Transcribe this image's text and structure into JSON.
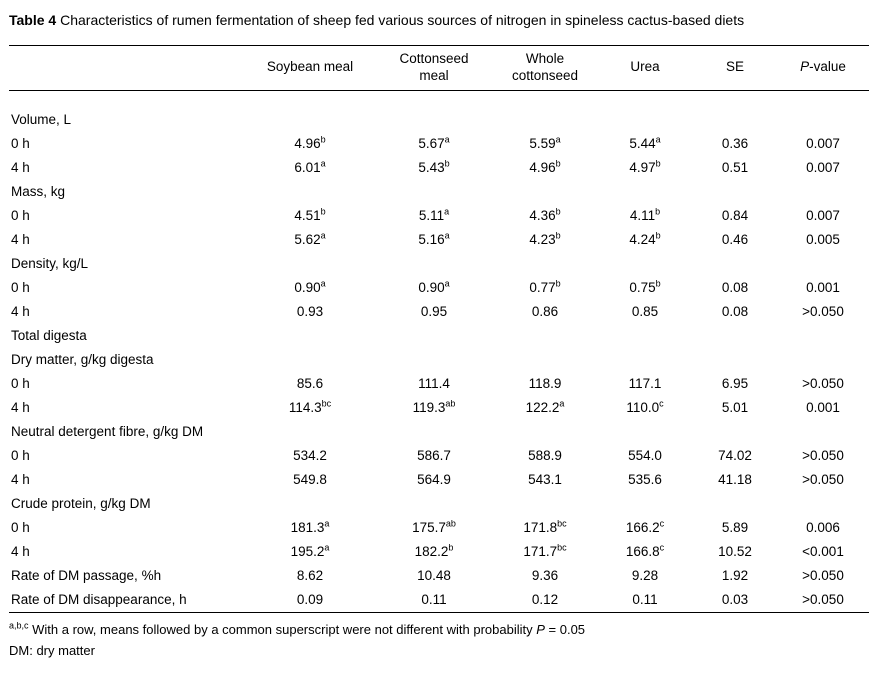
{
  "caption": {
    "label": "Table 4",
    "text": " Characteristics of rumen fermentation of sheep fed various sources of nitrogen in spineless cactus-based diets"
  },
  "table": {
    "columns": [
      {
        "name": "row-label-column",
        "lines": [
          ""
        ]
      },
      {
        "name": "column-soybean-meal",
        "lines": [
          "Soybean meal"
        ]
      },
      {
        "name": "column-cottonseed-meal",
        "lines": [
          "Cottonseed",
          "meal"
        ]
      },
      {
        "name": "column-whole-cottonseed",
        "lines": [
          "Whole",
          "cottonseed"
        ]
      },
      {
        "name": "column-urea",
        "lines": [
          "Urea"
        ]
      },
      {
        "name": "column-se",
        "lines": [
          "SE"
        ]
      },
      {
        "name": "column-p-value",
        "italic_prefix": "P",
        "lines": [
          "-value"
        ]
      }
    ],
    "rows": [
      {
        "type": "section",
        "label": "Volume, L"
      },
      {
        "type": "data",
        "label": "0 h",
        "cells": [
          {
            "v": "4.96",
            "sup": "b"
          },
          {
            "v": "5.67",
            "sup": "a"
          },
          {
            "v": "5.59",
            "sup": "a"
          },
          {
            "v": "5.44",
            "sup": "a"
          },
          {
            "v": "0.36"
          },
          {
            "v": "0.007"
          }
        ]
      },
      {
        "type": "data",
        "label": "4 h",
        "cells": [
          {
            "v": "6.01",
            "sup": "a"
          },
          {
            "v": "5.43",
            "sup": "b"
          },
          {
            "v": "4.96",
            "sup": "b"
          },
          {
            "v": "4.97",
            "sup": "b"
          },
          {
            "v": "0.51"
          },
          {
            "v": "0.007"
          }
        ]
      },
      {
        "type": "section",
        "label": "Mass, kg"
      },
      {
        "type": "data",
        "label": "0 h",
        "cells": [
          {
            "v": "4.51",
            "sup": "b"
          },
          {
            "v": "5.11",
            "sup": "a"
          },
          {
            "v": "4.36",
            "sup": "b"
          },
          {
            "v": "4.11",
            "sup": "b"
          },
          {
            "v": "0.84"
          },
          {
            "v": "0.007"
          }
        ]
      },
      {
        "type": "data",
        "label": "4 h",
        "cells": [
          {
            "v": "5.62",
            "sup": "a"
          },
          {
            "v": "5.16",
            "sup": "a"
          },
          {
            "v": "4.23",
            "sup": "b"
          },
          {
            "v": "4.24",
            "sup": "b"
          },
          {
            "v": "0.46"
          },
          {
            "v": "0.005"
          }
        ]
      },
      {
        "type": "section",
        "label": "Density, kg/L"
      },
      {
        "type": "data",
        "label": "0 h",
        "cells": [
          {
            "v": "0.90",
            "sup": "a"
          },
          {
            "v": "0.90",
            "sup": "a"
          },
          {
            "v": "0.77",
            "sup": "b"
          },
          {
            "v": "0.75",
            "sup": "b"
          },
          {
            "v": "0.08"
          },
          {
            "v": "0.001"
          }
        ]
      },
      {
        "type": "data",
        "label": "4 h",
        "cells": [
          {
            "v": "0.93"
          },
          {
            "v": "0.95"
          },
          {
            "v": "0.86"
          },
          {
            "v": "0.85"
          },
          {
            "v": "0.08"
          },
          {
            "v": ">0.050"
          }
        ]
      },
      {
        "type": "section",
        "label": "Total digesta"
      },
      {
        "type": "section",
        "label": "Dry matter, g/kg digesta"
      },
      {
        "type": "data",
        "label": "0 h",
        "cells": [
          {
            "v": "85.6"
          },
          {
            "v": "111.4"
          },
          {
            "v": "118.9"
          },
          {
            "v": "117.1"
          },
          {
            "v": "6.95"
          },
          {
            "v": ">0.050"
          }
        ]
      },
      {
        "type": "data",
        "label": "4 h",
        "cells": [
          {
            "v": "114.3",
            "sup": "bc"
          },
          {
            "v": "119.3",
            "sup": "ab"
          },
          {
            "v": "122.2",
            "sup": "a"
          },
          {
            "v": "110.0",
            "sup": "c"
          },
          {
            "v": "5.01"
          },
          {
            "v": "0.001"
          }
        ]
      },
      {
        "type": "section",
        "label": "Neutral detergent fibre, g/kg DM"
      },
      {
        "type": "data",
        "label": "0 h",
        "cells": [
          {
            "v": "534.2"
          },
          {
            "v": "586.7"
          },
          {
            "v": "588.9"
          },
          {
            "v": "554.0"
          },
          {
            "v": "74.02"
          },
          {
            "v": ">0.050"
          }
        ]
      },
      {
        "type": "data",
        "label": "4 h",
        "cells": [
          {
            "v": "549.8"
          },
          {
            "v": "564.9"
          },
          {
            "v": "543.1"
          },
          {
            "v": "535.6"
          },
          {
            "v": "41.18"
          },
          {
            "v": ">0.050"
          }
        ]
      },
      {
        "type": "section",
        "label": "Crude protein, g/kg DM"
      },
      {
        "type": "data",
        "label": "0 h",
        "cells": [
          {
            "v": "181.3",
            "sup": "a"
          },
          {
            "v": "175.7",
            "sup": "ab"
          },
          {
            "v": "171.8",
            "sup": "bc"
          },
          {
            "v": "166.2",
            "sup": "c"
          },
          {
            "v": "5.89"
          },
          {
            "v": "0.006"
          }
        ]
      },
      {
        "type": "data",
        "label": "4 h",
        "cells": [
          {
            "v": "195.2",
            "sup": "a"
          },
          {
            "v": "182.2",
            "sup": "b"
          },
          {
            "v": "171.7",
            "sup": "bc"
          },
          {
            "v": "166.8",
            "sup": "c"
          },
          {
            "v": "10.52"
          },
          {
            "v": "<0.001"
          }
        ]
      },
      {
        "type": "data",
        "label": "Rate of DM passage, %h",
        "cells": [
          {
            "v": "8.62"
          },
          {
            "v": "10.48"
          },
          {
            "v": "9.36"
          },
          {
            "v": "9.28"
          },
          {
            "v": "1.92"
          },
          {
            "v": ">0.050"
          }
        ]
      },
      {
        "type": "data",
        "label": "Rate of DM disappearance, h",
        "cells": [
          {
            "v": "0.09"
          },
          {
            "v": "0.11"
          },
          {
            "v": "0.12"
          },
          {
            "v": "0.11"
          },
          {
            "v": "0.03"
          },
          {
            "v": ">0.050"
          }
        ]
      }
    ]
  },
  "footnotes": [
    {
      "sup": "a,b,c",
      "pre": " With a row, means followed by a common superscript were not different with probability ",
      "italic": "P",
      "post": " = 0.05"
    },
    {
      "text": "DM: dry matter"
    }
  ]
}
